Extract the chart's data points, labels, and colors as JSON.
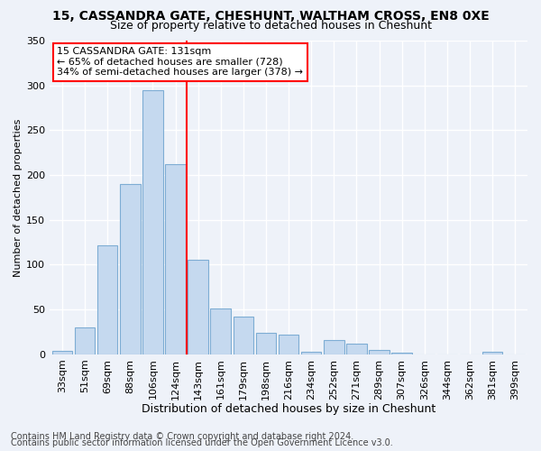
{
  "title1": "15, CASSANDRA GATE, CHESHUNT, WALTHAM CROSS, EN8 0XE",
  "title2": "Size of property relative to detached houses in Cheshunt",
  "xlabel": "Distribution of detached houses by size in Cheshunt",
  "ylabel": "Number of detached properties",
  "bar_labels": [
    "33sqm",
    "51sqm",
    "69sqm",
    "88sqm",
    "106sqm",
    "124sqm",
    "143sqm",
    "161sqm",
    "179sqm",
    "198sqm",
    "216sqm",
    "234sqm",
    "252sqm",
    "271sqm",
    "289sqm",
    "307sqm",
    "326sqm",
    "344sqm",
    "362sqm",
    "381sqm",
    "399sqm"
  ],
  "bar_values": [
    4,
    30,
    122,
    190,
    295,
    212,
    105,
    51,
    42,
    24,
    22,
    3,
    16,
    12,
    5,
    2,
    0,
    0,
    0,
    3,
    0
  ],
  "bar_color": "#c5d9ef",
  "bar_edge_color": "#7eadd4",
  "vline_x": 5.5,
  "vline_color": "red",
  "annotation_text": "15 CASSANDRA GATE: 131sqm\n← 65% of detached houses are smaller (728)\n34% of semi-detached houses are larger (378) →",
  "annotation_box_color": "white",
  "annotation_box_edge": "red",
  "ylim": [
    0,
    350
  ],
  "yticks": [
    0,
    50,
    100,
    150,
    200,
    250,
    300,
    350
  ],
  "footer1": "Contains HM Land Registry data © Crown copyright and database right 2024.",
  "footer2": "Contains public sector information licensed under the Open Government Licence v3.0.",
  "bg_color": "#eef2f9",
  "grid_color": "#ffffff",
  "title1_fontsize": 10,
  "title2_fontsize": 9,
  "tick_fontsize": 8,
  "xlabel_fontsize": 9,
  "ylabel_fontsize": 8,
  "footer_fontsize": 7
}
